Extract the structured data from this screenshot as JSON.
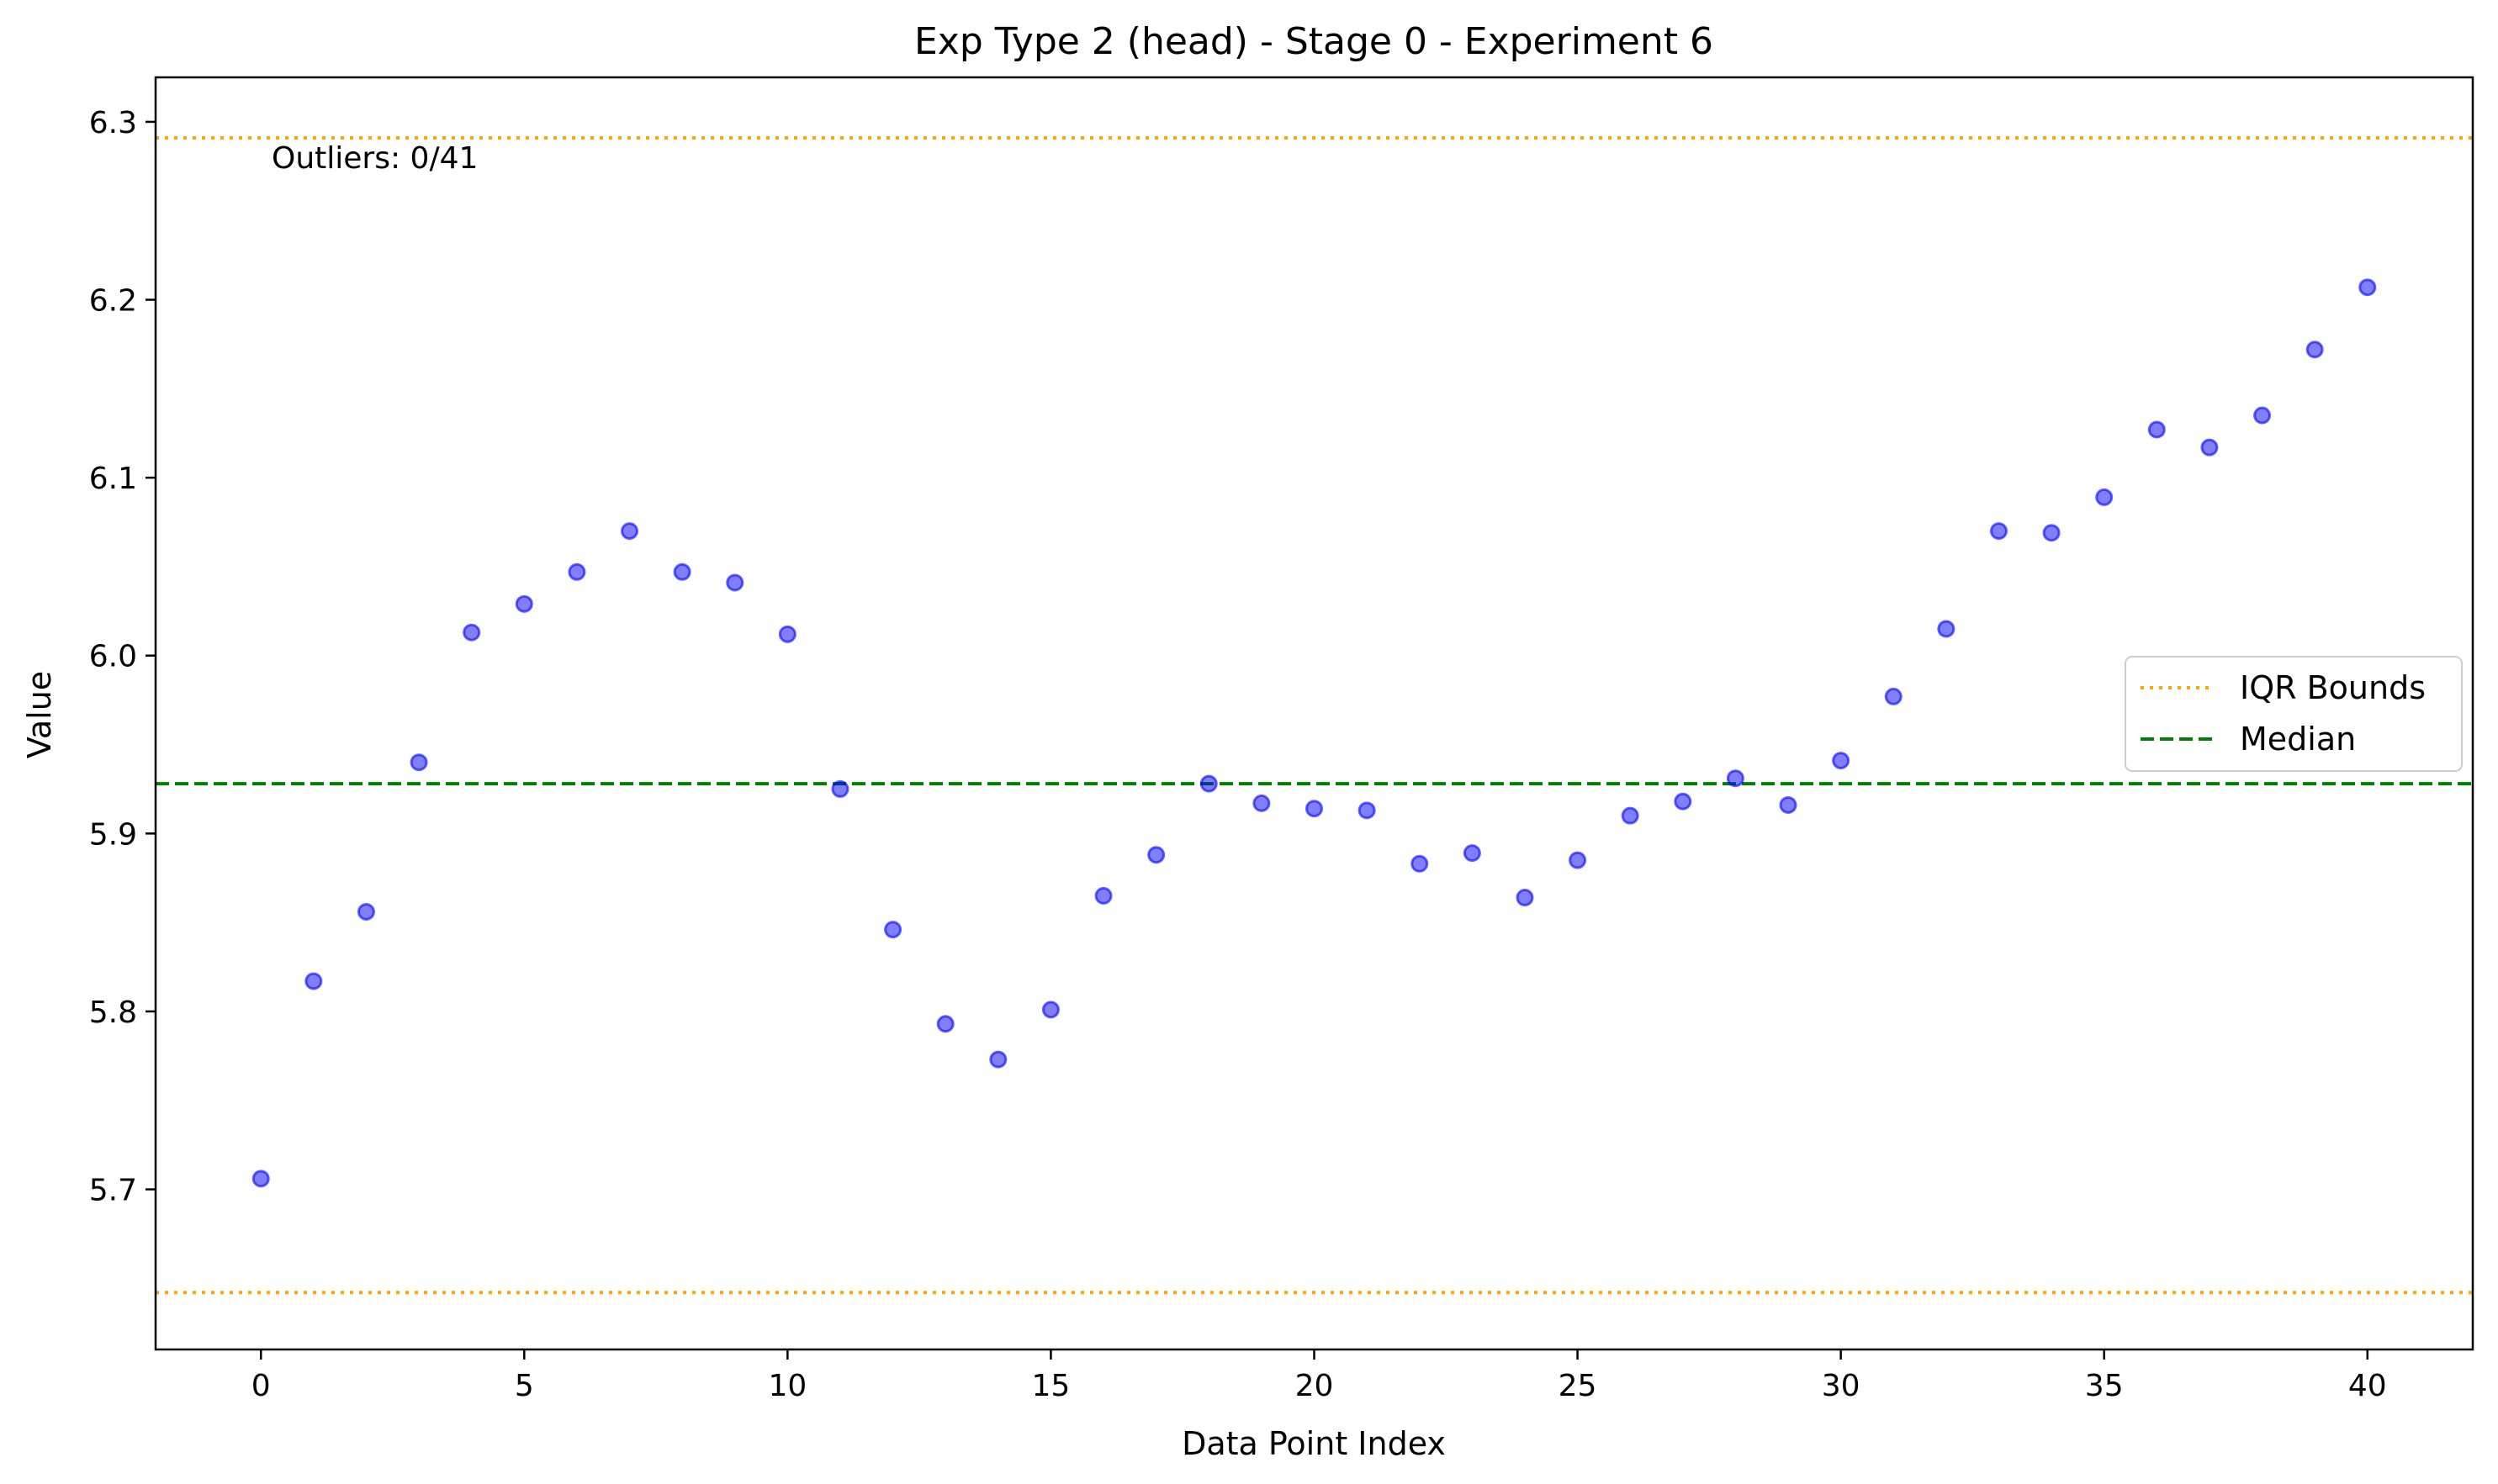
{
  "chart_data": {
    "type": "scatter",
    "title": "Exp Type 2 (head) - Stage 0 - Experiment 6",
    "xlabel": "Data Point Index",
    "ylabel": "Value",
    "xlim": [
      -2,
      42
    ],
    "ylim": [
      5.61,
      6.325
    ],
    "x_ticks": [
      0,
      5,
      10,
      15,
      20,
      25,
      30,
      35,
      40
    ],
    "y_ticks": [
      5.7,
      5.8,
      5.9,
      6.0,
      6.1,
      6.2,
      6.3
    ],
    "grid": false,
    "x": [
      0,
      1,
      2,
      3,
      4,
      5,
      6,
      7,
      8,
      9,
      10,
      11,
      12,
      13,
      14,
      15,
      16,
      17,
      18,
      19,
      20,
      21,
      22,
      23,
      24,
      25,
      26,
      27,
      28,
      29,
      30,
      31,
      32,
      33,
      34,
      35,
      36,
      37,
      38,
      39,
      40
    ],
    "y": [
      5.706,
      5.817,
      5.856,
      5.94,
      6.013,
      6.029,
      6.047,
      6.07,
      6.047,
      6.041,
      6.012,
      5.925,
      5.846,
      5.793,
      5.773,
      5.801,
      5.865,
      5.888,
      5.928,
      5.917,
      5.914,
      5.913,
      5.883,
      5.889,
      5.864,
      5.885,
      5.91,
      5.918,
      5.931,
      5.916,
      5.941,
      5.977,
      6.015,
      6.07,
      6.069,
      6.089,
      6.127,
      6.117,
      6.135,
      6.172,
      6.207
    ],
    "point_color": "#0000ff",
    "median": 5.928,
    "median_color": "#008000",
    "iqr_bounds": [
      5.642,
      6.291
    ],
    "iqr_color": "#ffa500",
    "legend": {
      "position": "center-right",
      "entries": [
        {
          "label": "IQR Bounds",
          "style": "dotted",
          "color": "#ffa500"
        },
        {
          "label": "Median",
          "style": "dashed",
          "color": "#008000"
        }
      ]
    },
    "annotation": "Outliers: 0/41"
  }
}
